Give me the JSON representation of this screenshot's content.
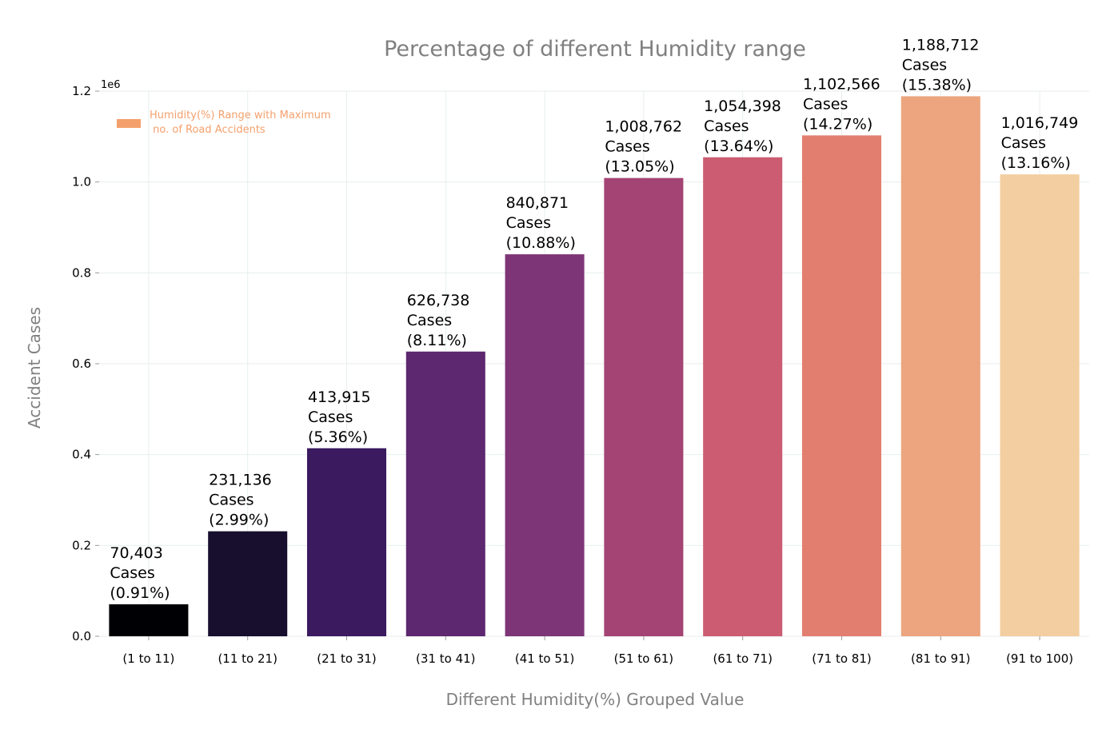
{
  "chart_data": {
    "type": "bar",
    "title": "Percentage of different Humidity range",
    "xlabel": "Different Humidity(%) Grouped Value",
    "ylabel": "Accident Cases",
    "y_scale_label": "1e6",
    "ylim": [
      0,
      1.2
    ],
    "yticks": [
      "0.0",
      "0.2",
      "0.4",
      "0.6",
      "0.8",
      "1.0",
      "1.2"
    ],
    "grid": true,
    "categories": [
      "(1 to 11)",
      "(11 to 21)",
      "(21 to 31)",
      "(31 to 41)",
      "(41 to 51)",
      "(51 to 61)",
      "(61 to 71)",
      "(71 to 81)",
      "(81 to 91)",
      "(91 to 100)"
    ],
    "values": [
      70403,
      231136,
      413915,
      626738,
      840871,
      1008762,
      1054398,
      1102566,
      1188712,
      1016749
    ],
    "labels": [
      [
        "70,403",
        "Cases",
        "(0.91%)"
      ],
      [
        "231,136",
        "Cases",
        "(2.99%)"
      ],
      [
        "413,915",
        "Cases",
        "(5.36%)"
      ],
      [
        "626,738",
        "Cases",
        "(8.11%)"
      ],
      [
        "840,871",
        "Cases",
        "(10.88%)"
      ],
      [
        "1,008,762",
        "Cases",
        "(13.05%)"
      ],
      [
        "1,054,398",
        "Cases",
        "(13.64%)"
      ],
      [
        "1,102,566",
        "Cases",
        "(14.27%)"
      ],
      [
        "1,188,712",
        "Cases",
        "(15.38%)"
      ],
      [
        "1,016,749",
        "Cases",
        "(13.16%)"
      ]
    ],
    "colors": [
      "#000004",
      "#180f2e",
      "#3b1a60",
      "#5d2870",
      "#7e3577",
      "#a44474",
      "#cb5c72",
      "#e27e6f",
      "#eca57f",
      "#f2cea0"
    ],
    "legend": {
      "placement": "top-left",
      "lines": [
        "Humidity(%) Range with Maximum",
        " no. of Road Accidents"
      ],
      "color": "#f4a06c"
    }
  }
}
